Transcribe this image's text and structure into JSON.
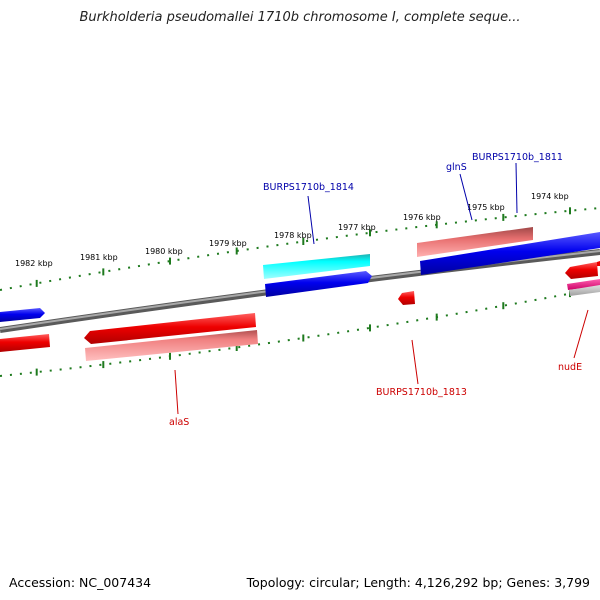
{
  "title": "Burkholderia pseudomallei 1710b chromosome I, complete seque...",
  "footer": {
    "accession": "Accession: NC_007434",
    "summary": "Topology: circular; Length: 4,126,292 bp; Genes: 3,799"
  },
  "colors": {
    "backbone": "#7a7a7a",
    "tick": "#1e7a1e",
    "forward_label": "#0000aa",
    "reverse_label": "#cc0000"
  },
  "ticks_upper": [
    "1982 kbp",
    "1981 kbp",
    "1980 kbp",
    "1979 kbp",
    "1978 kbp",
    "1977 kbp",
    "1976 kbp",
    "1975 kbp",
    "1974 kbp"
  ],
  "genes": [
    {
      "name": "BURPS1710b_1814",
      "strand": "forward"
    },
    {
      "name": "glnS",
      "strand": "forward"
    },
    {
      "name": "BURPS1710b_1811",
      "strand": "forward"
    },
    {
      "name": "alaS",
      "strand": "reverse"
    },
    {
      "name": "BURPS1710b_1813",
      "strand": "reverse"
    },
    {
      "name": "nudE",
      "strand": "reverse"
    }
  ]
}
